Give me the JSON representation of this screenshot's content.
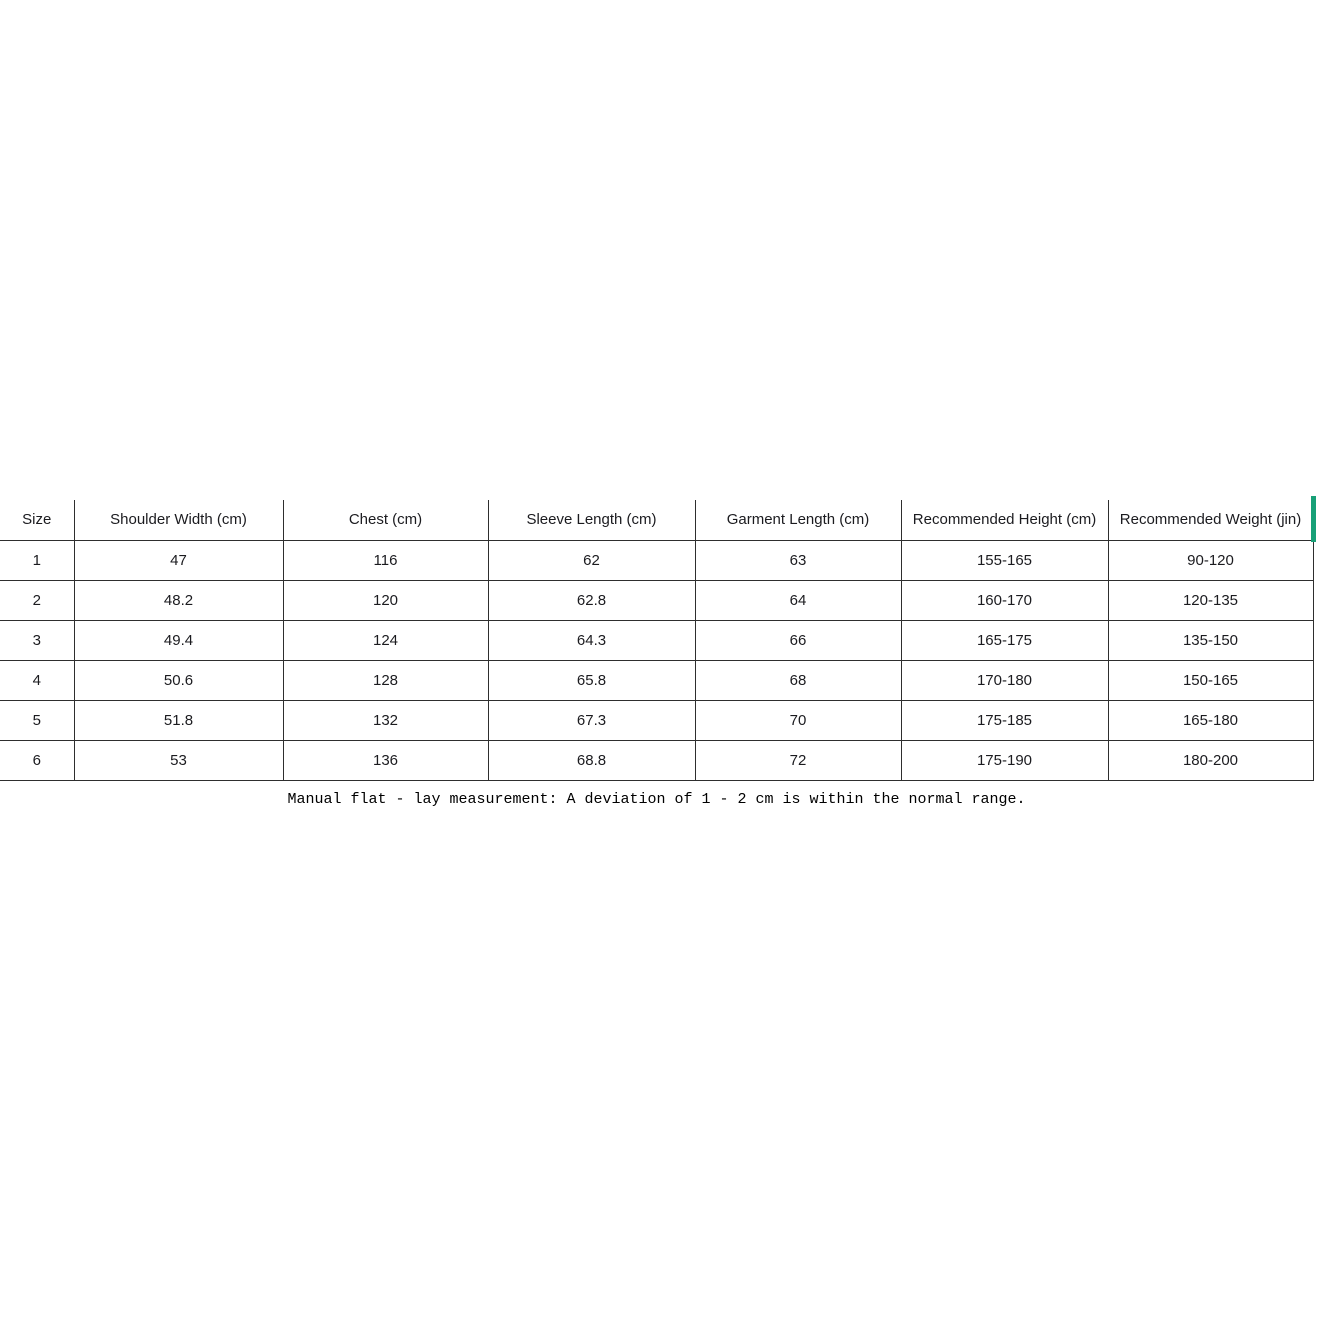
{
  "page": {
    "background": "#ffffff",
    "border_color": "#2e2e2e",
    "text_color": "#1b1b1f",
    "accent_color": "#18a077"
  },
  "size_chart": {
    "columns": [
      "Size",
      "Shoulder Width (cm)",
      "Chest (cm)",
      "Sleeve Length (cm)",
      "Garment Length (cm)",
      "Recommended Height (cm)",
      "Recommended Weight (jin)"
    ],
    "rows": [
      [
        "1",
        "47",
        "116",
        "62",
        "63",
        "155-165",
        "90-120"
      ],
      [
        "2",
        "48.2",
        "120",
        "62.8",
        "64",
        "160-170",
        "120-135"
      ],
      [
        "3",
        "49.4",
        "124",
        "64.3",
        "66",
        "165-175",
        "135-150"
      ],
      [
        "4",
        "50.6",
        "128",
        "65.8",
        "68",
        "170-180",
        "150-165"
      ],
      [
        "5",
        "51.8",
        "132",
        "67.3",
        "70",
        "175-185",
        "165-180"
      ],
      [
        "6",
        "53",
        "136",
        "68.8",
        "72",
        "175-190",
        "180-200"
      ]
    ],
    "note": "Manual flat - lay measurement: A deviation of 1 - 2 cm is within the normal range."
  }
}
